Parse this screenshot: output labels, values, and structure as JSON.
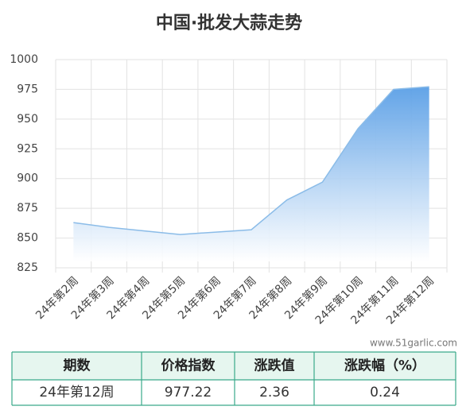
{
  "chart_data": {
    "type": "area",
    "title": "中国·批发大蒜走势",
    "categories": [
      "24年第2周",
      "24年第3周",
      "24年第4周",
      "24年第5周",
      "24年第6周",
      "24年第7周",
      "24年第8周",
      "24年第9周",
      "24年第10周",
      "24年第11周",
      "24年第12周"
    ],
    "values": [
      863,
      859,
      856,
      853,
      855,
      857,
      882,
      897,
      942,
      975,
      977.22
    ],
    "color": "#8bbce8",
    "ylim": [
      825,
      1000
    ],
    "yticks": [
      825,
      850,
      875,
      900,
      925,
      950,
      975,
      1000
    ],
    "grid": true
  },
  "watermark": "www.51garlic.com",
  "table": {
    "columns": [
      "期数",
      "价格指数",
      "涨跌值",
      "涨跌幅（%）"
    ],
    "rows": [
      [
        "24年第12周",
        "977.22",
        "2.36",
        "0.24"
      ]
    ]
  }
}
